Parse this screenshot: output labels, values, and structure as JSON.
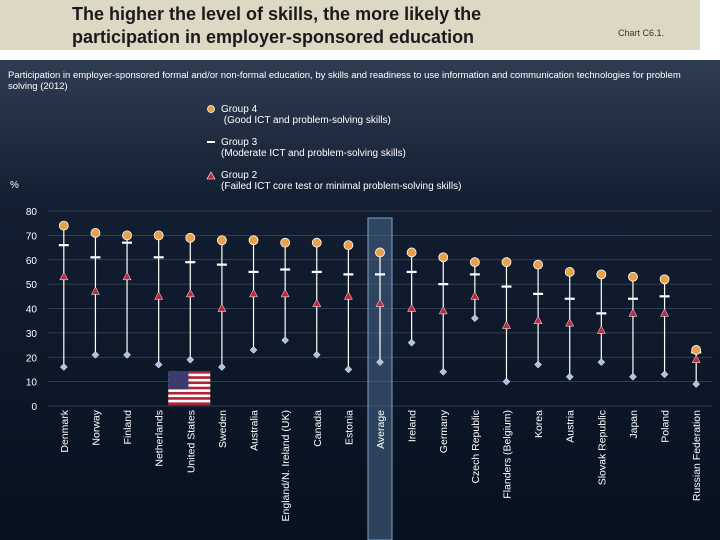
{
  "header": {
    "title": "The higher the level of skills, the more likely the participation in employer-sponsored education",
    "chart_id": "Chart C6.1."
  },
  "subtitle": "Participation in employer-sponsored formal and/or non-formal education, by skills and readiness to use information and communication technologies for problem solving (2012)",
  "legend": {
    "g4": "Group 4\n (Good ICT and problem-solving skills)",
    "g3": "Group 3\n(Moderate ICT and problem-solving skills)",
    "g2": "Group 2\n(Failed ICT core test or minimal problem-solving skills)"
  },
  "y_unit": "%",
  "colors": {
    "group4": "#e8a04a",
    "group3": "#ffffff",
    "group2": "#c0263c",
    "low": "#a8c4e0",
    "stem": "#ffffff",
    "highlight": "#4a6a8a"
  },
  "chart_data": {
    "type": "scatter",
    "ylim": [
      0,
      80
    ],
    "yticks": [
      0,
      10,
      20,
      30,
      40,
      50,
      60,
      70,
      80
    ],
    "grid": true,
    "legend_position": "top-center",
    "highlight_category": "Average",
    "flag_category": "United States",
    "categories": [
      "Denmark",
      "Norway",
      "Finland",
      "Netherlands",
      "United States",
      "Sweden",
      "Australia",
      "England/N. Ireland (UK)",
      "Canada",
      "Estonia",
      "Average",
      "Ireland",
      "Germany",
      "Czech Republic",
      "Flanders (Belgium)",
      "Korea",
      "Austria",
      "Slovak Republic",
      "Japan",
      "Poland",
      "Russian Federation"
    ],
    "series": [
      {
        "name": "Group 4",
        "marker": "circle",
        "values": [
          74,
          71,
          70,
          70,
          69,
          68,
          68,
          67,
          67,
          66,
          63,
          63,
          61,
          59,
          59,
          58,
          55,
          54,
          53,
          52,
          23
        ]
      },
      {
        "name": "Group 3",
        "marker": "dash",
        "values": [
          66,
          61,
          67,
          61,
          59,
          58,
          55,
          56,
          55,
          54,
          54,
          55,
          50,
          54,
          49,
          46,
          44,
          38,
          44,
          45,
          22
        ]
      },
      {
        "name": "Group 2",
        "marker": "triangle",
        "values": [
          53,
          47,
          53,
          45,
          46,
          40,
          46,
          46,
          42,
          45,
          42,
          40,
          39,
          45,
          33,
          35,
          34,
          31,
          38,
          38,
          19
        ]
      },
      {
        "marker": "diamond",
        "values": [
          16,
          21,
          21,
          17,
          19,
          16,
          23,
          27,
          21,
          15,
          18,
          26,
          14,
          36,
          10,
          17,
          12,
          18,
          12,
          13,
          9
        ]
      }
    ]
  }
}
